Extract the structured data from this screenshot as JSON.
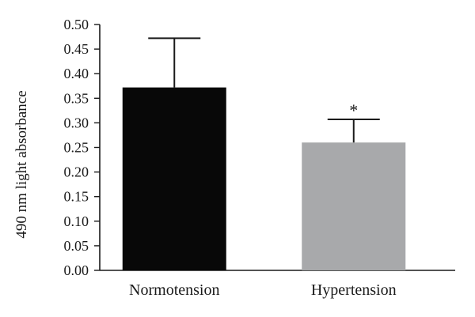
{
  "chart_data": {
    "type": "bar",
    "categories": [
      "Normotension",
      "Hypertension"
    ],
    "values": [
      0.372,
      0.26
    ],
    "errors": [
      0.1,
      0.047
    ],
    "colors": [
      "#080808",
      "#a8a9ab"
    ],
    "annotations": [
      "",
      "*"
    ],
    "ylabel": "490 nm light absorbance",
    "xlabel": "",
    "ylim": [
      0,
      0.5
    ],
    "yticks": [
      "0.00",
      "0.05",
      "0.10",
      "0.15",
      "0.20",
      "0.25",
      "0.30",
      "0.35",
      "0.40",
      "0.45",
      "0.50"
    ],
    "grid": false
  }
}
